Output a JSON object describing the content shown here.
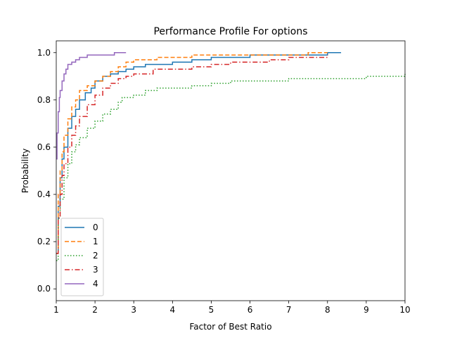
{
  "chart_data": {
    "type": "line",
    "title": "Performance Profile For options",
    "xlabel": "Factor of Best Ratio",
    "ylabel": "Probability",
    "xlim": [
      1,
      10
    ],
    "ylim": [
      -0.05,
      1.05
    ],
    "xticks": [
      1,
      2,
      3,
      4,
      5,
      6,
      7,
      8,
      9,
      10
    ],
    "yticks": [
      0.0,
      0.2,
      0.4,
      0.6,
      0.8,
      1.0
    ],
    "ytick_labels": [
      "0.0",
      "0.2",
      "0.4",
      "0.6",
      "0.8",
      "1.0"
    ],
    "grid": false,
    "legend_position": "lower left",
    "series": [
      {
        "name": "0",
        "color": "#1f77b4",
        "dash": "solid",
        "x": [
          1.0,
          1.05,
          1.1,
          1.15,
          1.2,
          1.3,
          1.4,
          1.5,
          1.6,
          1.75,
          1.9,
          2.0,
          2.2,
          2.4,
          2.6,
          2.8,
          3.0,
          3.3,
          3.6,
          4.0,
          4.5,
          5.0,
          5.2,
          6.0,
          7.0,
          8.0,
          8.35
        ],
        "y": [
          0.15,
          0.35,
          0.47,
          0.55,
          0.6,
          0.68,
          0.73,
          0.76,
          0.8,
          0.83,
          0.85,
          0.88,
          0.9,
          0.91,
          0.92,
          0.93,
          0.94,
          0.95,
          0.95,
          0.96,
          0.97,
          0.98,
          0.98,
          0.99,
          0.99,
          1.0,
          1.0
        ]
      },
      {
        "name": "1",
        "color": "#ff7f0e",
        "dash": "dashed",
        "x": [
          1.0,
          1.05,
          1.1,
          1.15,
          1.2,
          1.3,
          1.4,
          1.5,
          1.6,
          1.8,
          2.0,
          2.2,
          2.4,
          2.6,
          2.8,
          3.0,
          3.3,
          3.6,
          4.0,
          4.5,
          5.0,
          6.0,
          7.0,
          7.5,
          8.0
        ],
        "y": [
          0.15,
          0.4,
          0.5,
          0.58,
          0.65,
          0.72,
          0.77,
          0.8,
          0.84,
          0.86,
          0.88,
          0.9,
          0.92,
          0.94,
          0.96,
          0.97,
          0.97,
          0.98,
          0.98,
          0.99,
          0.99,
          0.99,
          0.99,
          1.0,
          1.0
        ]
      },
      {
        "name": "2",
        "color": "#2ca02c",
        "dash": "dotted",
        "x": [
          1.0,
          1.05,
          1.1,
          1.2,
          1.3,
          1.4,
          1.5,
          1.6,
          1.8,
          2.0,
          2.2,
          2.4,
          2.6,
          2.7,
          3.0,
          3.3,
          3.6,
          4.0,
          4.5,
          5.0,
          5.5,
          6.0,
          7.0,
          8.0,
          9.0,
          9.8,
          10.0
        ],
        "y": [
          0.12,
          0.3,
          0.38,
          0.47,
          0.53,
          0.58,
          0.61,
          0.64,
          0.68,
          0.71,
          0.74,
          0.76,
          0.79,
          0.81,
          0.82,
          0.84,
          0.85,
          0.85,
          0.86,
          0.87,
          0.88,
          0.88,
          0.89,
          0.89,
          0.9,
          0.9,
          0.91
        ]
      },
      {
        "name": "3",
        "color": "#d62728",
        "dash": "dashdot",
        "x": [
          1.0,
          1.05,
          1.1,
          1.15,
          1.2,
          1.3,
          1.4,
          1.5,
          1.6,
          1.8,
          2.0,
          2.2,
          2.4,
          2.6,
          2.8,
          3.0,
          3.5,
          4.0,
          4.5,
          5.0,
          5.5,
          6.0,
          6.5,
          7.0,
          7.5,
          8.0
        ],
        "y": [
          0.15,
          0.3,
          0.4,
          0.48,
          0.53,
          0.6,
          0.65,
          0.69,
          0.73,
          0.78,
          0.82,
          0.85,
          0.87,
          0.89,
          0.9,
          0.91,
          0.93,
          0.93,
          0.94,
          0.95,
          0.96,
          0.96,
          0.97,
          0.98,
          0.98,
          0.99
        ]
      },
      {
        "name": "4",
        "color": "#9467bd",
        "dash": "solid",
        "x": [
          1.0,
          1.02,
          1.05,
          1.08,
          1.1,
          1.15,
          1.2,
          1.25,
          1.3,
          1.4,
          1.5,
          1.6,
          1.8,
          2.0,
          2.2,
          2.5,
          2.8
        ],
        "y": [
          0.55,
          0.66,
          0.75,
          0.81,
          0.84,
          0.88,
          0.91,
          0.93,
          0.95,
          0.96,
          0.97,
          0.98,
          0.99,
          0.99,
          0.99,
          1.0,
          1.0
        ]
      }
    ]
  }
}
